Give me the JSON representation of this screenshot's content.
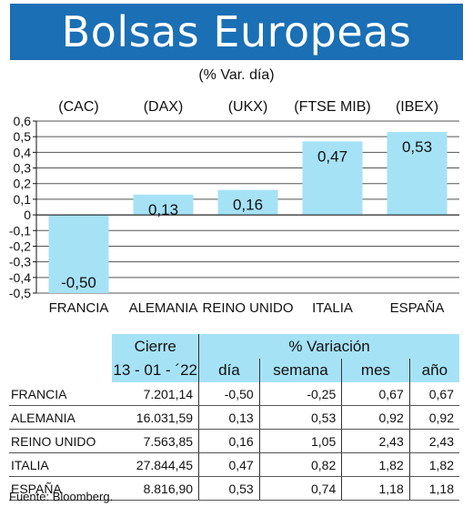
{
  "title": "Bolsas Europeas",
  "subtitle": "(% Var. día)",
  "chart_data": {
    "type": "bar",
    "categories": [
      "FRANCIA",
      "ALEMANIA",
      "REINO UNIDO",
      "ITALIA",
      "ESPAÑA"
    ],
    "indices": [
      "(CAC)",
      "(DAX)",
      "(UKX)",
      "(FTSE MIB)",
      "(IBEX)"
    ],
    "values": [
      -0.5,
      0.13,
      0.16,
      0.47,
      0.53
    ],
    "value_labels": [
      "-0,50",
      "0,13",
      "0,16",
      "0,47",
      "0,53"
    ],
    "yticks": [
      "0,6",
      "0,5",
      "0,4",
      "0,3",
      "0,2",
      "0,1",
      "0",
      "-0,1",
      "-0,2",
      "-0,3",
      "-0,4",
      "-0,5"
    ],
    "ylim": [
      -0.5,
      0.6
    ],
    "grid": true,
    "bar_color": "#a6e2f6"
  },
  "table": {
    "group_cierre": "Cierre",
    "group_variacion": "% Variación",
    "date": "13 - 01 - ´22",
    "col_dia": "día",
    "col_semana": "semana",
    "col_mes": "mes",
    "col_ano": "año",
    "rows": [
      {
        "name": "FRANCIA",
        "cierre": "7.201,14",
        "dia": "-0,50",
        "semana": "-0,25",
        "mes": "0,67",
        "ano": "0,67"
      },
      {
        "name": "ALEMANIA",
        "cierre": "16.031,59",
        "dia": "0,13",
        "semana": "0,53",
        "mes": "0,92",
        "ano": "0,92"
      },
      {
        "name": "REINO UNIDO",
        "cierre": "7.563,85",
        "dia": "0,16",
        "semana": "1,05",
        "mes": "2,43",
        "ano": "2,43"
      },
      {
        "name": "ITALIA",
        "cierre": "27.844,45",
        "dia": "0,47",
        "semana": "0,82",
        "mes": "1,82",
        "ano": "1,82"
      },
      {
        "name": "ESPAÑA",
        "cierre": "8.816,90",
        "dia": "0,53",
        "semana": "0,74",
        "mes": "1,18",
        "ano": "1,18"
      }
    ]
  },
  "source": "Fuente: Bloomberg.",
  "colors": {
    "banner": "#1a6fb5",
    "header_fill": "#a6e2f6"
  }
}
